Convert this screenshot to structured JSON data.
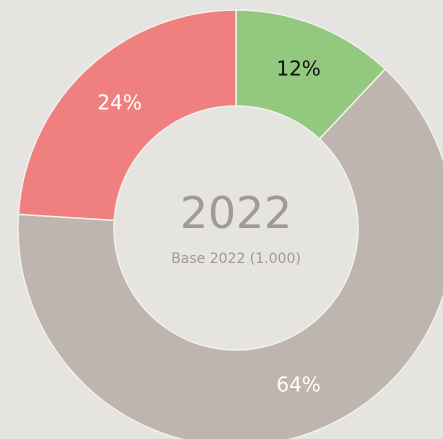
{
  "chart_data": {
    "type": "donut",
    "title": "2022",
    "subtitle": "Base 2022 (1.000)",
    "values": [
      12,
      64,
      24
    ],
    "value_labels": [
      "12%",
      "64%",
      "24%"
    ],
    "colors": [
      "#93c87f",
      "#bdb5ae",
      "#f08080"
    ],
    "label_colors": [
      "#111111",
      "#ffffff",
      "#ffffff"
    ]
  }
}
